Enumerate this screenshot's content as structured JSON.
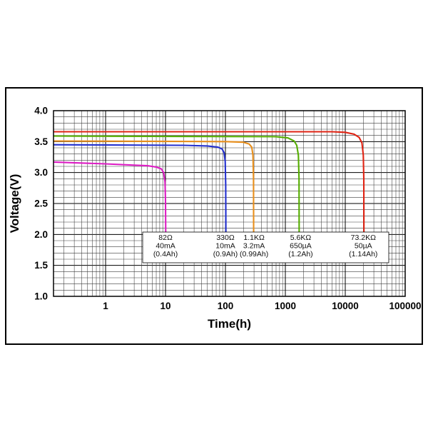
{
  "page": {
    "background": "#ffffff",
    "frame_color": "#000000"
  },
  "chart_data": {
    "type": "line",
    "title": "",
    "xlabel": "Time(h)",
    "ylabel": "Voltage(V)",
    "x_scale": "log",
    "xlim": [
      0.135,
      100000
    ],
    "ylim": [
      1.0,
      4.0
    ],
    "grid": {
      "horizontal_minor_step": 0.1,
      "horizontal_major_step": 0.5,
      "vertical": "log-decades-with-minors",
      "grid_on": true
    },
    "legend_position": "none",
    "x_ticks": [
      1,
      10,
      100,
      1000,
      10000,
      100000
    ],
    "x_tick_labels": [
      "1",
      "10",
      "100",
      "1000",
      "10000",
      "100000"
    ],
    "y_ticks": [
      1.0,
      1.5,
      2.0,
      2.5,
      3.0,
      3.5,
      4.0
    ],
    "y_tick_labels": [
      "1.0",
      "1.5",
      "2.0",
      "2.5",
      "3.0",
      "3.5",
      "4.0"
    ],
    "series": [
      {
        "name": "82Ω 40mA (0.4Ah)",
        "color": "#dd1cc4",
        "points": [
          [
            0.135,
            3.17
          ],
          [
            1,
            3.14
          ],
          [
            3,
            3.12
          ],
          [
            5,
            3.11
          ],
          [
            7,
            3.09
          ],
          [
            8.5,
            3.06
          ],
          [
            9.3,
            3.0
          ],
          [
            9.8,
            2.85
          ],
          [
            10,
            2.55
          ],
          [
            10.1,
            1.9
          ]
        ]
      },
      {
        "name": "330Ω 10mA (0.9Ah)",
        "color": "#2330cf",
        "points": [
          [
            0.135,
            3.45
          ],
          [
            20,
            3.44
          ],
          [
            50,
            3.43
          ],
          [
            75,
            3.41
          ],
          [
            88,
            3.38
          ],
          [
            95,
            3.32
          ],
          [
            99,
            3.18
          ],
          [
            101,
            2.8
          ],
          [
            102,
            1.9
          ]
        ]
      },
      {
        "name": "1.1KΩ 3.2mA (0.99Ah)",
        "color": "#e88f1c",
        "points": [
          [
            0.135,
            3.51
          ],
          [
            100,
            3.5
          ],
          [
            200,
            3.49
          ],
          [
            250,
            3.46
          ],
          [
            275,
            3.41
          ],
          [
            288,
            3.28
          ],
          [
            294,
            2.9
          ],
          [
            296,
            1.9
          ]
        ]
      },
      {
        "name": "5.6KΩ 650µA (1.2Ah)",
        "color": "#55ad00",
        "points": [
          [
            0.135,
            3.59
          ],
          [
            700,
            3.58
          ],
          [
            1100,
            3.56
          ],
          [
            1400,
            3.51
          ],
          [
            1550,
            3.44
          ],
          [
            1650,
            3.28
          ],
          [
            1690,
            2.9
          ],
          [
            1700,
            1.9
          ]
        ]
      },
      {
        "name": "73.2KΩ 50µA (1.14Ah)",
        "color": "#e02414",
        "points": [
          [
            0.135,
            3.66
          ],
          [
            6000,
            3.66
          ],
          [
            10000,
            3.65
          ],
          [
            14000,
            3.62
          ],
          [
            17000,
            3.57
          ],
          [
            19000,
            3.48
          ],
          [
            20000,
            3.28
          ],
          [
            20400,
            2.9
          ],
          [
            20500,
            1.9
          ]
        ]
      }
    ],
    "annotations": [
      {
        "time": 10,
        "lines": [
          "82Ω",
          "40mA",
          "(0.4Ah)"
        ]
      },
      {
        "time": 100,
        "lines": [
          "330Ω",
          "10mA",
          "(0.9Ah)"
        ]
      },
      {
        "time": 300,
        "lines": [
          "1.1KΩ",
          "3.2mA",
          "(0.99Ah)"
        ]
      },
      {
        "time": 1800,
        "lines": [
          "5.6KΩ",
          "650µA",
          "(1.2Ah)"
        ]
      },
      {
        "time": 20000,
        "lines": [
          "73.2KΩ",
          "50µA",
          "(1.14Ah)"
        ]
      }
    ]
  }
}
